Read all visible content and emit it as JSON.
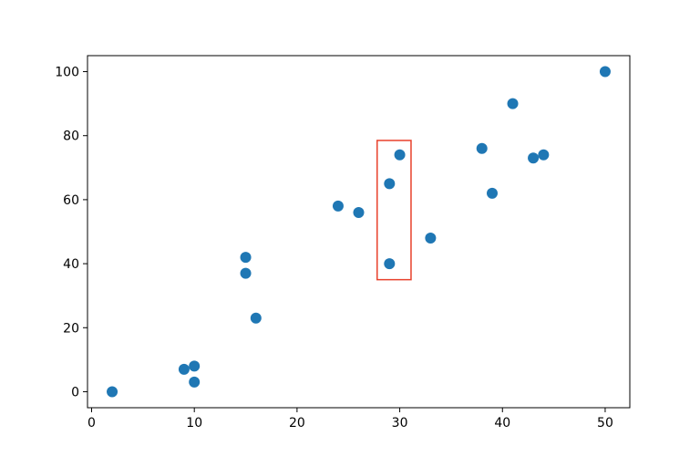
{
  "chart_data": {
    "type": "scatter",
    "title": "",
    "xlabel": "",
    "ylabel": "",
    "xlim": [
      -0.4,
      52.4
    ],
    "ylim": [
      -5,
      105
    ],
    "xticks": [
      0,
      10,
      20,
      30,
      40,
      50
    ],
    "yticks": [
      0,
      20,
      40,
      60,
      80,
      100
    ],
    "xtick_labels": [
      "0",
      "10",
      "20",
      "30",
      "40",
      "50"
    ],
    "ytick_labels": [
      "0",
      "20",
      "40",
      "60",
      "80",
      "100"
    ],
    "grid": false,
    "marker_color": "#1f77b4",
    "highlight": {
      "x_range": [
        27.8,
        31.1
      ],
      "y_range": [
        35,
        78.5
      ],
      "color": "#e8412c"
    },
    "points": [
      {
        "x": 2,
        "y": 0
      },
      {
        "x": 9,
        "y": 7
      },
      {
        "x": 10,
        "y": 8
      },
      {
        "x": 10,
        "y": 3
      },
      {
        "x": 15,
        "y": 42
      },
      {
        "x": 15,
        "y": 37
      },
      {
        "x": 16,
        "y": 23
      },
      {
        "x": 24,
        "y": 58
      },
      {
        "x": 26,
        "y": 56
      },
      {
        "x": 29,
        "y": 65
      },
      {
        "x": 29,
        "y": 40
      },
      {
        "x": 30,
        "y": 74
      },
      {
        "x": 33,
        "y": 48
      },
      {
        "x": 38,
        "y": 76
      },
      {
        "x": 39,
        "y": 62
      },
      {
        "x": 41,
        "y": 90
      },
      {
        "x": 43,
        "y": 73
      },
      {
        "x": 44,
        "y": 74
      },
      {
        "x": 50,
        "y": 100
      }
    ]
  }
}
